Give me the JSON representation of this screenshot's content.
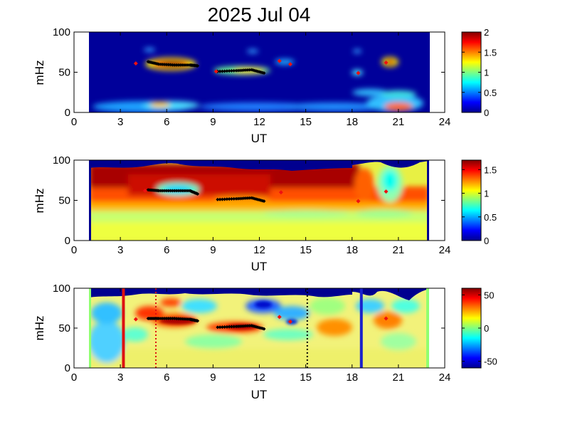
{
  "chart_data": {
    "title": "2025 Jul 04",
    "panels": [
      {
        "type": "heatmap",
        "xlabel": "UT",
        "ylabel": "mHz",
        "xlim": [
          0,
          24
        ],
        "ylim": [
          0,
          100
        ],
        "xticks": [
          "0",
          "3",
          "6",
          "9",
          "12",
          "15",
          "18",
          "21",
          "24"
        ],
        "yticks": [
          "0",
          "50",
          "100"
        ],
        "data_range_ut": [
          1,
          23
        ],
        "colorbar": {
          "range": [
            0,
            2
          ],
          "ticks": [
            "0",
            "0.5",
            "1",
            "1.5",
            "2"
          ]
        },
        "ridges": [
          {
            "x": [
              4.8,
              5.5,
              6.5,
              7.5,
              8.0
            ],
            "y": [
              63,
              60,
              59,
              59,
              58
            ]
          },
          {
            "x": [
              9.3,
              10.5,
              11.5,
              12.3
            ],
            "y": [
              51,
              52,
              53,
              49
            ]
          }
        ],
        "markers": [
          {
            "x": 4.0,
            "y": 61
          },
          {
            "x": 9.2,
            "y": 51
          },
          {
            "x": 13.3,
            "y": 64
          },
          {
            "x": 14.0,
            "y": 60
          },
          {
            "x": 18.4,
            "y": 49
          },
          {
            "x": 20.2,
            "y": 62
          }
        ]
      },
      {
        "type": "heatmap",
        "xlabel": "UT",
        "ylabel": "mHz",
        "xlim": [
          0,
          24
        ],
        "ylim": [
          0,
          100
        ],
        "xticks": [
          "0",
          "3",
          "6",
          "9",
          "12",
          "15",
          "18",
          "21",
          "24"
        ],
        "yticks": [
          "0",
          "50",
          "100"
        ],
        "data_range_ut": [
          1,
          23
        ],
        "colorbar": {
          "range": [
            0,
            1.7
          ],
          "ticks": [
            "0",
            "0.5",
            "1",
            "1.5"
          ]
        },
        "ridges": [
          {
            "x": [
              4.8,
              5.5,
              6.5,
              7.5,
              8.0
            ],
            "y": [
              63,
              62,
              62,
              62,
              58
            ]
          },
          {
            "x": [
              9.3,
              10.5,
              11.5,
              12.3
            ],
            "y": [
              51,
              52,
              53,
              49
            ]
          }
        ],
        "markers": [
          {
            "x": 4.6,
            "y": 62
          },
          {
            "x": 13.4,
            "y": 60
          },
          {
            "x": 18.4,
            "y": 49
          },
          {
            "x": 20.2,
            "y": 61
          }
        ]
      },
      {
        "type": "heatmap",
        "xlabel": "UT",
        "ylabel": "mHz",
        "xlim": [
          0,
          24
        ],
        "ylim": [
          0,
          100
        ],
        "xticks": [
          "0",
          "3",
          "6",
          "9",
          "12",
          "15",
          "18",
          "21",
          "24"
        ],
        "yticks": [
          "0",
          "50",
          "100"
        ],
        "data_range_ut": [
          1,
          23
        ],
        "colorbar": {
          "range": [
            -60,
            60
          ],
          "ticks": [
            "-50",
            "0",
            "50"
          ]
        },
        "ridges": [
          {
            "x": [
              4.8,
              5.5,
              6.5,
              7.5,
              8.0
            ],
            "y": [
              62,
              62,
              62,
              61,
              59
            ]
          },
          {
            "x": [
              9.3,
              10.5,
              11.5,
              12.3
            ],
            "y": [
              51,
              52,
              53,
              49
            ]
          }
        ],
        "markers": [
          {
            "x": 4.0,
            "y": 61
          },
          {
            "x": 13.3,
            "y": 64
          },
          {
            "x": 14.0,
            "y": 58
          },
          {
            "x": 20.2,
            "y": 62
          }
        ],
        "vlines": [
          {
            "x": 3.2,
            "color": "#dd1111",
            "style": "solid"
          },
          {
            "x": 5.3,
            "color": "#dd1111",
            "style": "dotted"
          },
          {
            "x": 15.1,
            "color": "#000000",
            "style": "dotted"
          },
          {
            "x": 18.6,
            "color": "#1a22cc",
            "style": "solid"
          }
        ]
      }
    ]
  }
}
